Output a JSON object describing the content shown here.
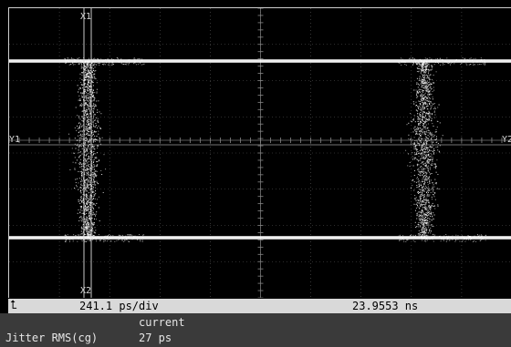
{
  "cursors": {
    "x1_label": "X1",
    "x2_label": "X2",
    "y1_label": "Y1",
    "y2_label": "Y2"
  },
  "status_bar": {
    "ground_marker_glyph": "⮤",
    "timebase": "241.1 ps/div",
    "position": "23.9553 ns"
  },
  "measurement": {
    "column_header": "current",
    "name": "Jitter RMS(cg)",
    "value": "27 ps"
  },
  "colors": {
    "trace": "#ffffff",
    "grid": "#5a5a5a",
    "status_bar": "#d9d9d9",
    "measurement_panel": "#3a3a3a"
  }
}
